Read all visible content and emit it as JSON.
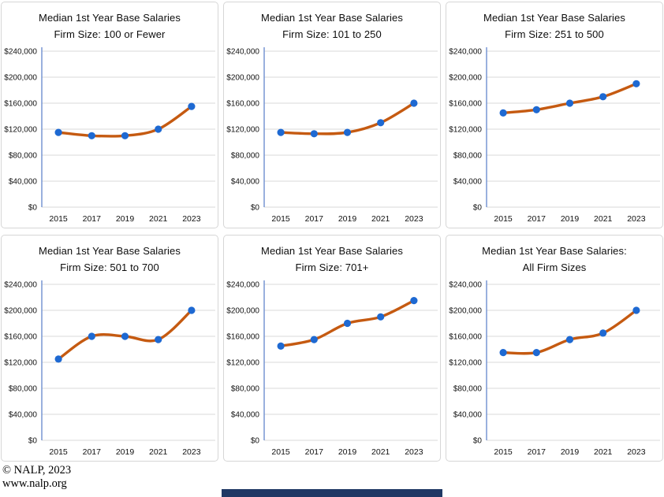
{
  "style": {
    "line_color": "#C55A11",
    "marker_color": "#1E69D2",
    "axis_color": "#6E8FD0",
    "grid_color": "#D9D9D9",
    "panel_border_color": "#D6D6D6",
    "bottom_bar_color": "#1F3864"
  },
  "footer": {
    "line1": "© NALP, 2023",
    "line2": "www.nalp.org"
  },
  "chart_data": [
    {
      "type": "line",
      "title_line1": "Median 1st Year Base Salaries",
      "title_line2": "Firm Size: 100 or Fewer",
      "x": [
        "2015",
        "2017",
        "2019",
        "2021",
        "2023"
      ],
      "values": [
        115000,
        110000,
        110000,
        120000,
        155000
      ],
      "xlabel": "",
      "ylabel": "",
      "ylim": [
        0,
        240000
      ],
      "ytick_values": [
        0,
        40000,
        80000,
        120000,
        160000,
        200000,
        240000
      ],
      "ytick_labels": [
        "$0",
        "$40,000",
        "$80,000",
        "$120,000",
        "$160,000",
        "$200,000",
        "$240,000"
      ],
      "grid": true,
      "legend": false
    },
    {
      "type": "line",
      "title_line1": "Median 1st Year Base Salaries",
      "title_line2": "Firm Size: 101 to 250",
      "x": [
        "2015",
        "2017",
        "2019",
        "2021",
        "2023"
      ],
      "values": [
        115000,
        113000,
        115000,
        130000,
        160000
      ],
      "xlabel": "",
      "ylabel": "",
      "ylim": [
        0,
        240000
      ],
      "ytick_values": [
        0,
        40000,
        80000,
        120000,
        160000,
        200000,
        240000
      ],
      "ytick_labels": [
        "$0",
        "$40,000",
        "$80,000",
        "$120,000",
        "$160,000",
        "$200,000",
        "$240,000"
      ],
      "grid": true,
      "legend": false
    },
    {
      "type": "line",
      "title_line1": "Median 1st Year Base Salaries",
      "title_line2": "Firm Size: 251 to 500",
      "x": [
        "2015",
        "2017",
        "2019",
        "2021",
        "2023"
      ],
      "values": [
        145000,
        150000,
        160000,
        170000,
        190000
      ],
      "xlabel": "",
      "ylabel": "",
      "ylim": [
        0,
        240000
      ],
      "ytick_values": [
        0,
        40000,
        80000,
        120000,
        160000,
        200000,
        240000
      ],
      "ytick_labels": [
        "$0",
        "$40,000",
        "$80,000",
        "$120,000",
        "$160,000",
        "$200,000",
        "$240,000"
      ],
      "grid": true,
      "legend": false
    },
    {
      "type": "line",
      "title_line1": "Median 1st Year Base Salaries",
      "title_line2": "Firm Size: 501 to 700",
      "x": [
        "2015",
        "2017",
        "2019",
        "2021",
        "2023"
      ],
      "values": [
        125000,
        160000,
        160000,
        155000,
        200000
      ],
      "xlabel": "",
      "ylabel": "",
      "ylim": [
        0,
        240000
      ],
      "ytick_values": [
        0,
        40000,
        80000,
        120000,
        160000,
        200000,
        240000
      ],
      "ytick_labels": [
        "$0",
        "$40,000",
        "$80,000",
        "$120,000",
        "$160,000",
        "$200,000",
        "$240,000"
      ],
      "grid": true,
      "legend": false
    },
    {
      "type": "line",
      "title_line1": "Median 1st Year Base Salaries",
      "title_line2": "Firm Size: 701+",
      "x": [
        "2015",
        "2017",
        "2019",
        "2021",
        "2023"
      ],
      "values": [
        145000,
        155000,
        180000,
        190000,
        215000
      ],
      "xlabel": "",
      "ylabel": "",
      "ylim": [
        0,
        240000
      ],
      "ytick_values": [
        0,
        40000,
        80000,
        120000,
        160000,
        200000,
        240000
      ],
      "ytick_labels": [
        "$0",
        "$40,000",
        "$80,000",
        "$120,000",
        "$160,000",
        "$200,000",
        "$240,000"
      ],
      "grid": true,
      "legend": false
    },
    {
      "type": "line",
      "title_line1": "Median 1st Year Base Salaries:",
      "title_line2": "All Firm Sizes",
      "x": [
        "2015",
        "2017",
        "2019",
        "2021",
        "2023"
      ],
      "values": [
        135000,
        135000,
        155000,
        165000,
        200000
      ],
      "xlabel": "",
      "ylabel": "",
      "ylim": [
        0,
        240000
      ],
      "ytick_values": [
        0,
        40000,
        80000,
        120000,
        160000,
        200000,
        240000
      ],
      "ytick_labels": [
        "$0",
        "$40,000",
        "$80,000",
        "$120,000",
        "$160,000",
        "$200,000",
        "$240,000"
      ],
      "grid": true,
      "legend": false
    }
  ]
}
